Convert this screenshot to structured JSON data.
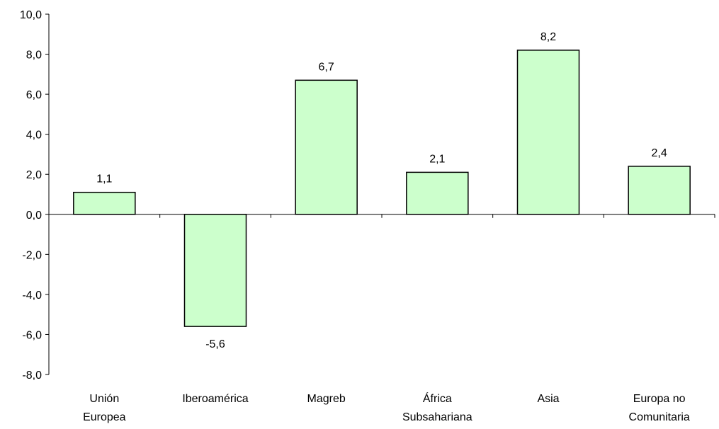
{
  "chart_data": {
    "type": "bar",
    "categories": [
      [
        "Unión",
        "Europea"
      ],
      [
        "Iberoamérica"
      ],
      [
        "Magreb"
      ],
      [
        "África",
        "Subsahariana"
      ],
      [
        "Asia"
      ],
      [
        "Europa no",
        "Comunitaria"
      ]
    ],
    "values": [
      1.1,
      -5.6,
      6.7,
      2.1,
      8.2,
      2.4
    ],
    "value_labels": [
      "1,1",
      "-5,6",
      "6,7",
      "2,1",
      "8,2",
      "2,4"
    ],
    "y_ticks": [
      "-8,0",
      "-6,0",
      "-4,0",
      "-2,0",
      "0,0",
      "2,0",
      "4,0",
      "6,0",
      "8,0",
      "10,0"
    ],
    "y_tick_values": [
      -8,
      -6,
      -4,
      -2,
      0,
      2,
      4,
      6,
      8,
      10
    ],
    "ylim": [
      -8,
      10
    ],
    "title": "",
    "xlabel": "",
    "ylabel": "",
    "grid": false,
    "legend": "none",
    "colors": {
      "bar_fill": "#ccffcc",
      "bar_stroke": "#000000",
      "axis": "#000000"
    }
  }
}
